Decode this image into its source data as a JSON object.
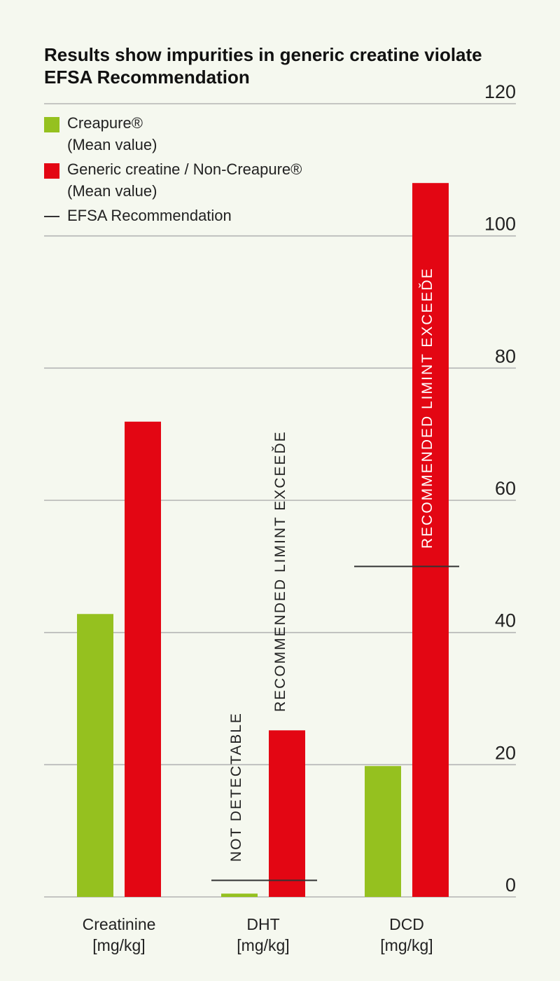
{
  "chart_data": {
    "type": "bar",
    "title": "Results show impurities in generic creatine violate EFSA Recommendation",
    "categories": [
      "Creatinine\n[mg/kg]",
      "DHT\n[mg/kg]",
      "DCD\n[mg/kg]"
    ],
    "series": [
      {
        "name": "Creapure® (Mean value)",
        "color": "#95c11f",
        "values": [
          42.8,
          0.5,
          19.8
        ]
      },
      {
        "name": "Generic creatine / Non-Creapure® (Mean value)",
        "color": "#e30613",
        "values": [
          71.9,
          25.2,
          108
        ]
      }
    ],
    "efsa_recommendation": [
      null,
      2.5,
      50
    ],
    "ylim": [
      0,
      120
    ],
    "yticks": [
      0,
      20,
      40,
      60,
      80,
      100,
      120
    ],
    "grid": true,
    "legend_position": "top-left",
    "annotations": [
      {
        "text": "NOT DETECTABLE",
        "category": 1,
        "series": 0
      },
      {
        "text": "RECOMMENDED LIMINT  EXCEEĎE",
        "category": 1,
        "series": 1
      },
      {
        "text": "RECOMMENDED LIMINT  EXCEEĎE",
        "category": 2,
        "series": 1
      }
    ]
  },
  "legend": {
    "creapure_label": "Creapure®",
    "creapure_sub": "(Mean value)",
    "generic_label": "Generic creatine / Non-Creapure®",
    "generic_sub": "(Mean value)",
    "efsa_label": "EFSA Recommendation"
  },
  "colors": {
    "creapure": "#95c11f",
    "generic": "#e30613",
    "grid": "#b4b4b4",
    "efsa_line": "#333333",
    "background": "#f5f8ef"
  }
}
